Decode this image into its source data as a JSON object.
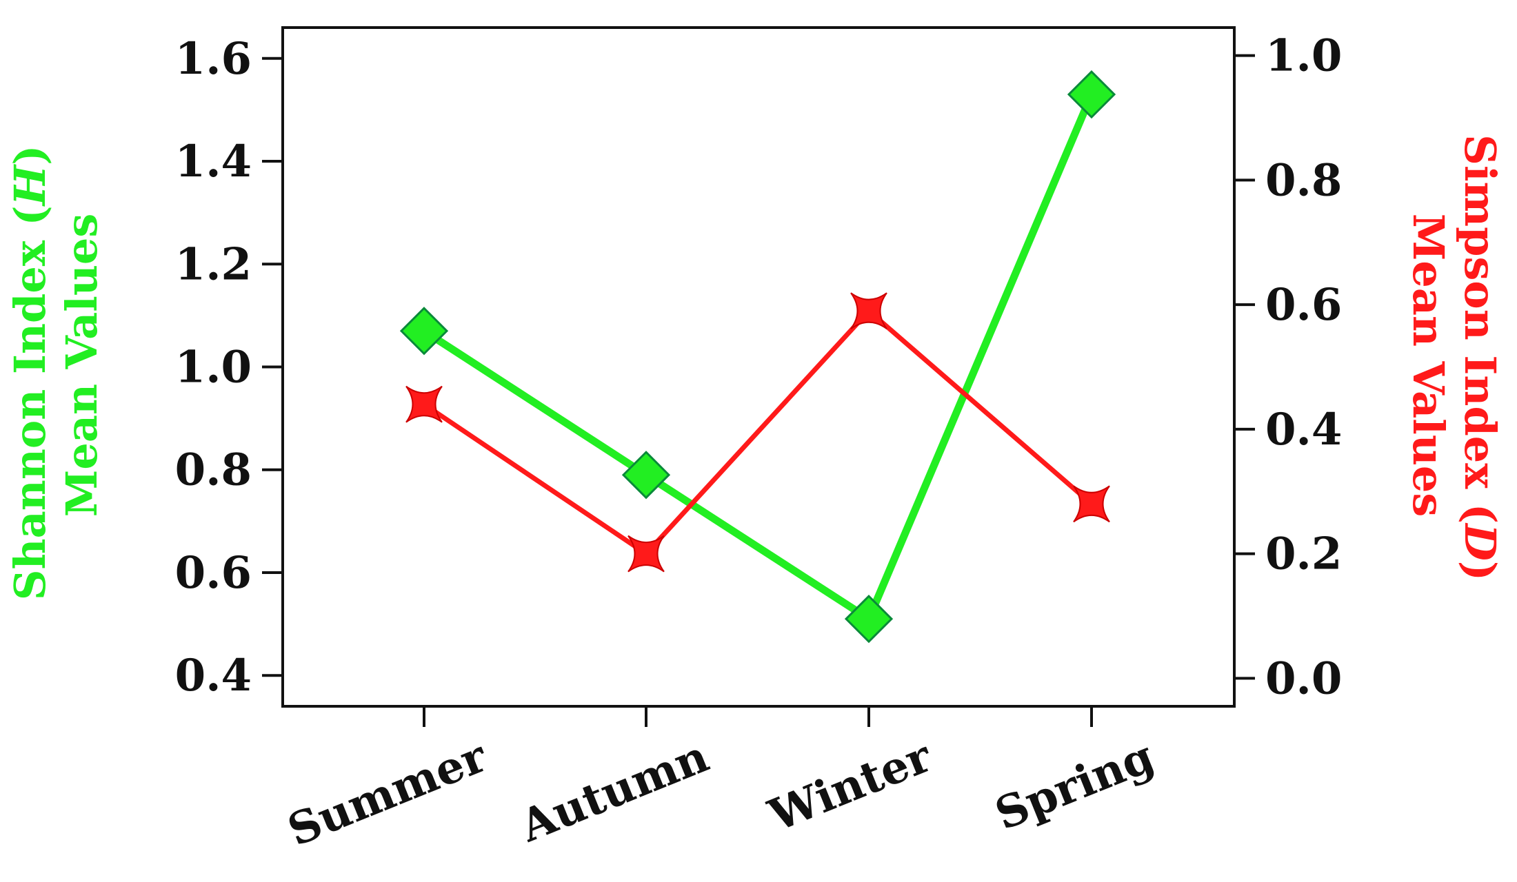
{
  "chart_data": {
    "type": "line",
    "categories": [
      "Summer",
      "Autumn",
      "Winter",
      "Spring"
    ],
    "series": [
      {
        "name": "Shannon Index (H)",
        "axis": "left",
        "color": "#22ee22",
        "marker": "diamond",
        "values": [
          1.07,
          0.79,
          0.51,
          1.53
        ]
      },
      {
        "name": "Simpson Index (D)",
        "axis": "right",
        "color": "#ff1a1a",
        "marker": "star",
        "values": [
          0.44,
          0.2,
          0.59,
          0.28
        ]
      }
    ],
    "y_left": {
      "label_main": "Shannon Index (",
      "label_italic": "H",
      "label_close": ")",
      "label_line2": "Mean Values",
      "color": "#22ee22",
      "lim": [
        0.34,
        1.66
      ],
      "ticks": [
        "0.4",
        "0.6",
        "0.8",
        "1.0",
        "1.2",
        "1.4",
        "1.6"
      ]
    },
    "y_right": {
      "label_main": "Simpson Index (",
      "label_italic": "D",
      "label_close": ")",
      "label_line2": "Mean Values",
      "color": "#ff1a1a",
      "lim": [
        -0.045,
        1.045
      ],
      "ticks": [
        "0.0",
        "0.2",
        "0.4",
        "0.6",
        "0.8",
        "1.0"
      ]
    },
    "grid": false,
    "legend": "none"
  }
}
